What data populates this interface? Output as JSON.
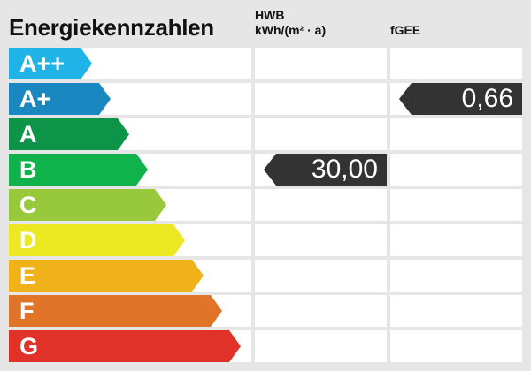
{
  "title": "Energiekennzahlen",
  "columns": {
    "hwb_label": "HWB",
    "hwb_unit": "kWh/(m² · a)",
    "fgee_label": "fGEE"
  },
  "classes": [
    {
      "label": "A++",
      "color": "#1fb3e8"
    },
    {
      "label": "A+",
      "color": "#1a87c0"
    },
    {
      "label": "A",
      "color": "#0d9448"
    },
    {
      "label": "B",
      "color": "#10b24c"
    },
    {
      "label": "C",
      "color": "#98c93c"
    },
    {
      "label": "D",
      "color": "#ece823"
    },
    {
      "label": "E",
      "color": "#f0b21b"
    },
    {
      "label": "F",
      "color": "#e07428"
    },
    {
      "label": "G",
      "color": "#e1322a"
    }
  ],
  "hwb": {
    "value": "30,00",
    "class": "B"
  },
  "fgee": {
    "value": "0,66",
    "class": "A+"
  },
  "marker_color": "#333333"
}
